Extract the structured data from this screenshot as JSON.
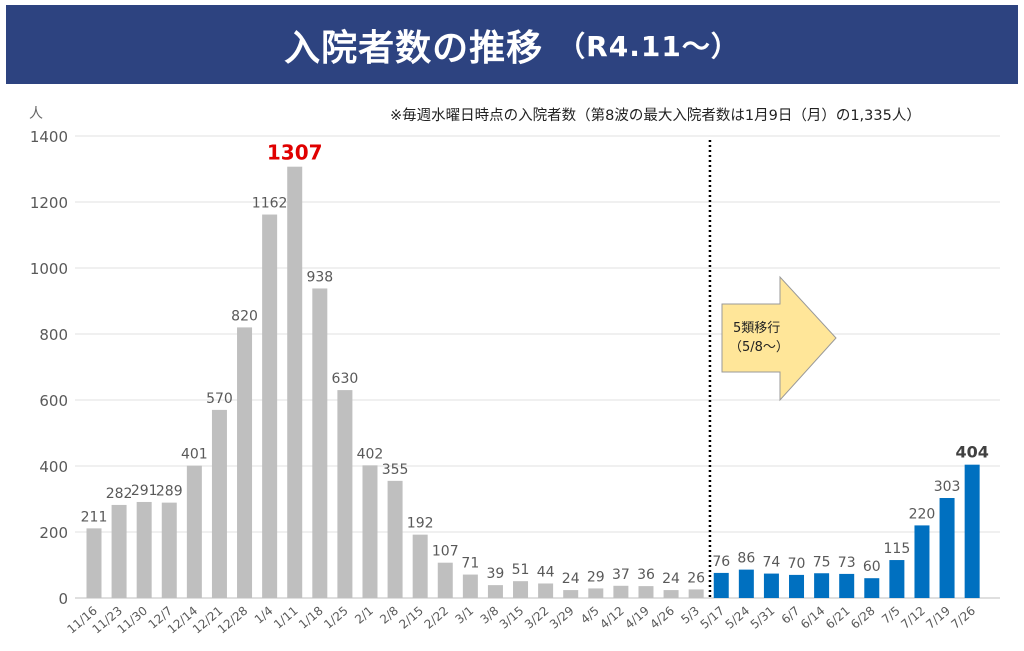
{
  "header": {
    "title": "入院者数の推移",
    "subtitle": "（R4.11～）",
    "color": "#2d4380"
  },
  "note": "※毎週水曜日時点の入院者数（第8波の最大入院者数は1月9日（月）の1,335人）",
  "chart_data": {
    "type": "bar",
    "ylabel": "人",
    "ylim": [
      0,
      1400
    ],
    "yticks": [
      0,
      200,
      400,
      600,
      800,
      1000,
      1200,
      1400
    ],
    "grid": true,
    "categories": [
      "11/16",
      "11/23",
      "11/30",
      "12/7",
      "12/14",
      "12/21",
      "12/28",
      "1/4",
      "1/11",
      "1/18",
      "1/25",
      "2/1",
      "2/8",
      "2/15",
      "2/22",
      "3/1",
      "3/8",
      "3/15",
      "3/22",
      "3/29",
      "4/5",
      "4/12",
      "4/19",
      "4/26",
      "5/3",
      "5/17",
      "5/24",
      "5/31",
      "6/7",
      "6/14",
      "6/21",
      "6/28",
      "7/5",
      "7/12",
      "7/19",
      "7/26"
    ],
    "values": [
      211,
      282,
      291,
      289,
      401,
      570,
      820,
      1162,
      1307,
      938,
      630,
      402,
      355,
      192,
      107,
      71,
      39,
      51,
      44,
      24,
      29,
      37,
      36,
      24,
      26,
      76,
      86,
      74,
      70,
      75,
      73,
      60,
      115,
      220,
      303,
      404
    ],
    "colors": {
      "before": "#bfbfbf",
      "after": "#0070c0",
      "peak_label": "#e00000",
      "latest_label": "#404040"
    },
    "peak_category": "1/11",
    "divider_after": "5/3",
    "annotation": {
      "line1": "5類移行",
      "line2": "（5/8～）",
      "fill": "#ffe699"
    }
  }
}
